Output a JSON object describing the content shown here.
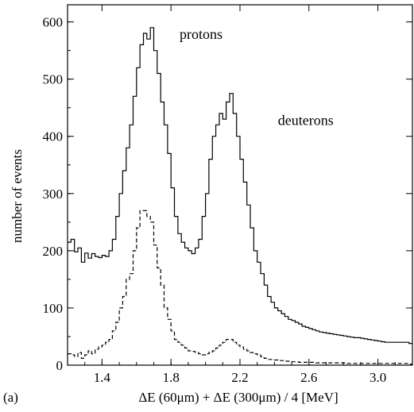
{
  "chart_data": {
    "type": "line",
    "panel_label": "(a)",
    "xlabel": "ΔE (60μm) + ΔE (300μm) / 4   [MeV]",
    "ylabel": "number of events",
    "xlim": [
      1.2,
      3.2
    ],
    "ylim": [
      0,
      630
    ],
    "x_ticks": [
      "1.4",
      "1.8",
      "2.2",
      "2.6",
      "3.0"
    ],
    "x_tick_values": [
      1.4,
      1.8,
      2.2,
      2.6,
      3.0
    ],
    "y_ticks": [
      "0",
      "100",
      "200",
      "300",
      "400",
      "500",
      "600"
    ],
    "y_tick_values": [
      0,
      100,
      200,
      300,
      400,
      500,
      600
    ],
    "grid": false,
    "bin_start": 1.2,
    "bin_width": 0.02,
    "series": [
      {
        "style": "solid step",
        "values": [
          215,
          220,
          198,
          205,
          180,
          196,
          187,
          195,
          190,
          188,
          192,
          190,
          200,
          220,
          260,
          300,
          340,
          380,
          420,
          470,
          520,
          560,
          580,
          570,
          590,
          550,
          510,
          460,
          420,
          370,
          310,
          260,
          230,
          215,
          205,
          200,
          195,
          205,
          220,
          260,
          300,
          360,
          400,
          420,
          440,
          430,
          460,
          475,
          440,
          400,
          360,
          320,
          280,
          240,
          200,
          180,
          160,
          140,
          120,
          110,
          100,
          95,
          90,
          85,
          80,
          78,
          75,
          72,
          68,
          66,
          64,
          62,
          60,
          58,
          57,
          56,
          55,
          54,
          53,
          52,
          51,
          50,
          49,
          48,
          48,
          47,
          46,
          45,
          44,
          43,
          42,
          41,
          40,
          40,
          40,
          40,
          40,
          40,
          40,
          38
        ],
        "annotation": "protons"
      },
      {
        "style": "dashed step",
        "values": [
          20,
          18,
          15,
          22,
          12,
          18,
          25,
          20,
          28,
          32,
          35,
          40,
          45,
          60,
          75,
          100,
          120,
          150,
          160,
          200,
          240,
          270,
          270,
          260,
          250,
          210,
          170,
          140,
          100,
          80,
          60,
          45,
          40,
          35,
          30,
          25,
          24,
          22,
          20,
          18,
          20,
          22,
          25,
          30,
          35,
          40,
          45,
          45,
          40,
          35,
          32,
          28,
          25,
          22,
          20,
          18,
          15,
          12,
          10,
          10,
          9,
          8,
          8,
          7,
          7,
          6,
          6,
          5,
          5,
          5,
          5,
          5,
          4,
          4,
          4,
          4,
          4,
          4,
          4,
          4,
          4,
          3,
          3,
          3,
          3,
          3,
          3,
          3,
          3,
          3,
          3,
          3,
          3,
          3,
          3,
          3,
          3,
          3,
          3,
          2
        ],
        "annotation": "deuterons"
      }
    ],
    "annotations": [
      {
        "text": "protons",
        "x": 1.85,
        "y": 570
      },
      {
        "text": "deuterons",
        "x": 2.42,
        "y": 420
      }
    ]
  }
}
